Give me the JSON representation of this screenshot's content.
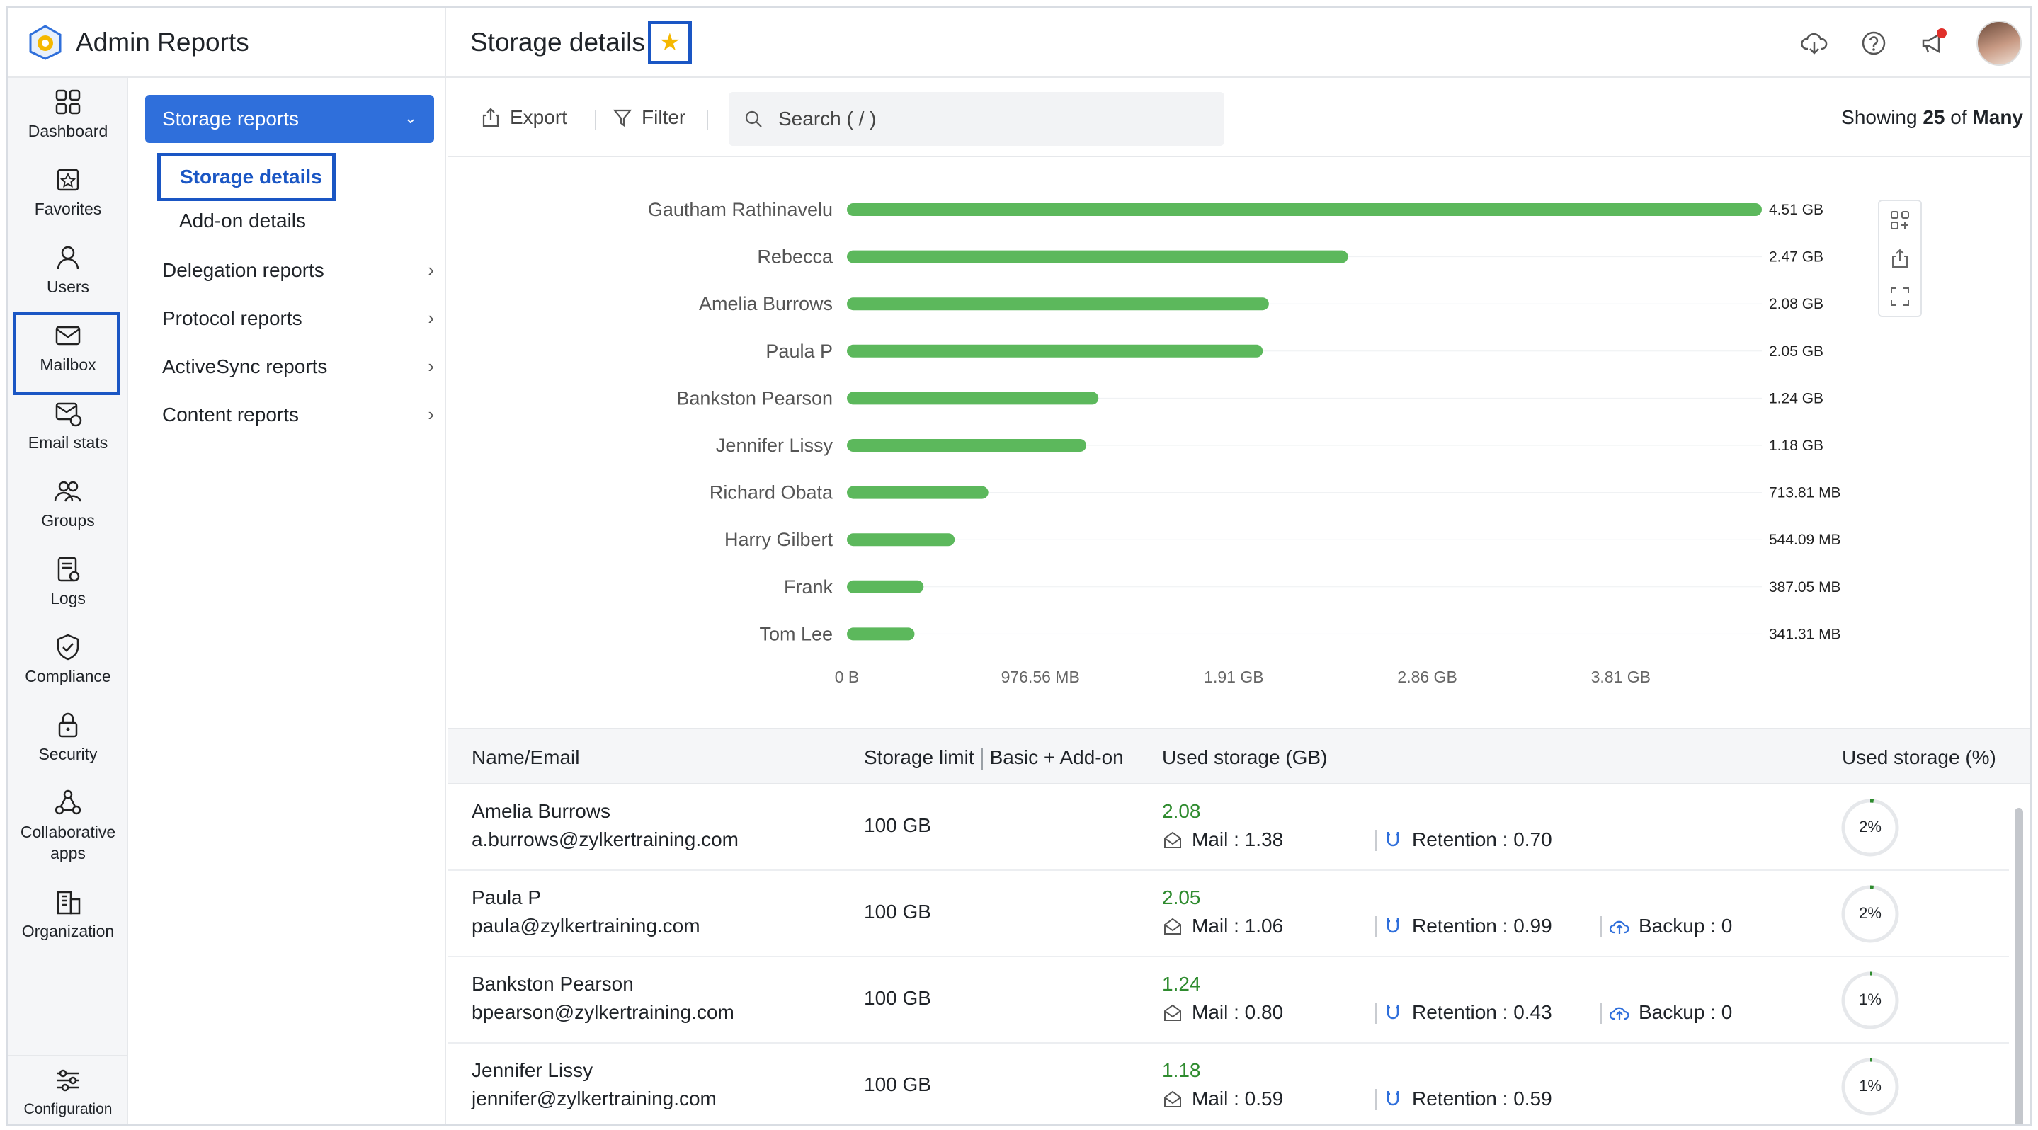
{
  "app": {
    "title": "Admin Reports"
  },
  "page": {
    "title": "Storage details"
  },
  "rail": [
    {
      "id": "dashboard",
      "label": "Dashboard"
    },
    {
      "id": "favorites",
      "label": "Favorites"
    },
    {
      "id": "users",
      "label": "Users"
    },
    {
      "id": "mailbox",
      "label": "Mailbox",
      "active": true
    },
    {
      "id": "email-stats",
      "label": "Email stats"
    },
    {
      "id": "groups",
      "label": "Groups"
    },
    {
      "id": "logs",
      "label": "Logs"
    },
    {
      "id": "compliance",
      "label": "Compliance"
    },
    {
      "id": "security",
      "label": "Security"
    },
    {
      "id": "collab",
      "label": "Collaborative apps"
    },
    {
      "id": "organization",
      "label": "Organization"
    },
    {
      "id": "configuration",
      "label": "Configuration"
    }
  ],
  "submenu": {
    "primary": "Storage reports",
    "children": [
      "Storage details",
      "Add-on details"
    ],
    "items": [
      "Delegation reports",
      "Protocol reports",
      "ActiveSync reports",
      "Content reports"
    ]
  },
  "toolbar": {
    "export_label": "Export",
    "filter_label": "Filter",
    "search_placeholder": "Search ( / )",
    "showing_prefix": "Showing",
    "showing_count": "25",
    "showing_mid": "of",
    "showing_total": "Many"
  },
  "chart_data": {
    "type": "bar",
    "orientation": "horizontal",
    "categories": [
      "Gautham Rathinavelu",
      "Rebecca",
      "Amelia Burrows",
      "Paula P",
      "Bankston Pearson",
      "Jennifer Lissy",
      "Richard Obata",
      "Harry Gilbert",
      "Frank",
      "Tom Lee"
    ],
    "values_mb": [
      4618.24,
      2529.28,
      2129.92,
      2099.2,
      1269.76,
      1208.32,
      713.81,
      544.09,
      387.05,
      341.31
    ],
    "data_labels": [
      "4.51 GB",
      "2.47 GB",
      "2.08 GB",
      "2.05 GB",
      "1.24 GB",
      "1.18 GB",
      "713.81 MB",
      "544.09 MB",
      "387.05 MB",
      "341.31 MB"
    ],
    "x_ticks_mb": [
      0,
      976.56,
      1953.12,
      2929.68,
      3906.24
    ],
    "x_tick_labels": [
      "0 B",
      "976.56 MB",
      "1.91 GB",
      "2.86 GB",
      "3.81 GB"
    ],
    "xlim_mb": [
      0,
      4618.24
    ],
    "bar_color": "#5cb85c",
    "grid": false,
    "title": "",
    "xlabel": "",
    "ylabel": ""
  },
  "table": {
    "headers": {
      "name": "Name/Email",
      "limit_a": "Storage limit",
      "limit_b": "Basic + Add-on",
      "used": "Used storage (GB)",
      "percent": "Used storage (%)"
    },
    "rows": [
      {
        "name": "Amelia Burrows",
        "email": "a.burrows@zylkertraining.com",
        "limit": "100 GB",
        "used": "2.08",
        "mail": "Mail : 1.38",
        "retention": "Retention : 0.70",
        "backup": "",
        "percent_label": "2%",
        "percent_value": 2
      },
      {
        "name": "Paula P",
        "email": "paula@zylkertraining.com",
        "limit": "100 GB",
        "used": "2.05",
        "mail": "Mail : 1.06",
        "retention": "Retention : 0.99",
        "backup": "Backup : 0",
        "percent_label": "2%",
        "percent_value": 2
      },
      {
        "name": "Bankston Pearson",
        "email": "bpearson@zylkertraining.com",
        "limit": "100 GB",
        "used": "1.24",
        "mail": "Mail : 0.80",
        "retention": "Retention : 0.43",
        "backup": "Backup : 0",
        "percent_label": "1%",
        "percent_value": 1
      },
      {
        "name": "Jennifer Lissy",
        "email": "jennifer@zylkertraining.com",
        "limit": "100 GB",
        "used": "1.18",
        "mail": "Mail : 0.59",
        "retention": "Retention : 0.59",
        "backup": "",
        "percent_label": "1%",
        "percent_value": 1
      }
    ]
  },
  "colors": {
    "accent": "#2f6fdb",
    "highlight": "#1a56c4",
    "used_green": "#2e8b2e",
    "star": "#f5b800"
  }
}
